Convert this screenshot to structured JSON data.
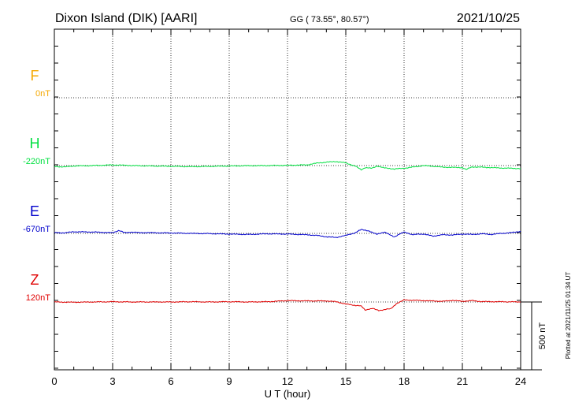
{
  "header": {
    "station": "Dixon Island (DIK)  [AARI]",
    "coords": "GG ( 73.55°,  80.57°)",
    "date": "2021/10/25"
  },
  "footer": {
    "plotted": "Plotted at 2021/11/25 01:34 UT"
  },
  "chart_data": {
    "type": "line",
    "xlabel": "U T (hour)",
    "xlim": [
      0,
      24
    ],
    "xticks": [
      0,
      3,
      6,
      9,
      12,
      15,
      18,
      21,
      24
    ],
    "scale_bar_label": "500 nT",
    "scale_bar_nT": 500,
    "series": [
      {
        "name": "F",
        "baseline_label": "0nT",
        "color": "#f5a800",
        "points": []
      },
      {
        "name": "H",
        "baseline_label": "-220nT",
        "color": "#00e040",
        "points": [
          [
            0,
            -7
          ],
          [
            0.5,
            -10
          ],
          [
            1,
            -3
          ],
          [
            2,
            0
          ],
          [
            3,
            5
          ],
          [
            3.5,
            3
          ],
          [
            4,
            0
          ],
          [
            5,
            -3
          ],
          [
            6,
            -5
          ],
          [
            7,
            -8
          ],
          [
            8,
            -6
          ],
          [
            9,
            -3
          ],
          [
            10,
            -1
          ],
          [
            11,
            0
          ],
          [
            12,
            2
          ],
          [
            13,
            5
          ],
          [
            13.5,
            18
          ],
          [
            14,
            25
          ],
          [
            14.5,
            30
          ],
          [
            15,
            20
          ],
          [
            15.5,
            -5
          ],
          [
            15.8,
            -30
          ],
          [
            16,
            -15
          ],
          [
            16.3,
            -20
          ],
          [
            16.6,
            -5
          ],
          [
            17,
            -18
          ],
          [
            17.5,
            -25
          ],
          [
            18,
            -20
          ],
          [
            19,
            0
          ],
          [
            19.5,
            -5
          ],
          [
            20,
            -12
          ],
          [
            21,
            -15
          ],
          [
            21.2,
            -28
          ],
          [
            21.5,
            -10
          ],
          [
            22,
            -12
          ],
          [
            23,
            -18
          ],
          [
            24,
            -22
          ]
        ]
      },
      {
        "name": "E",
        "baseline_label": "-670nT",
        "color": "#0000cc",
        "points": [
          [
            0,
            5
          ],
          [
            0.5,
            4
          ],
          [
            1,
            12
          ],
          [
            2,
            10
          ],
          [
            3,
            5
          ],
          [
            3.3,
            20
          ],
          [
            3.6,
            8
          ],
          [
            5,
            5
          ],
          [
            6,
            3
          ],
          [
            7,
            0
          ],
          [
            8,
            -2
          ],
          [
            9,
            -5
          ],
          [
            10,
            -8
          ],
          [
            11,
            -3
          ],
          [
            12,
            -5
          ],
          [
            13,
            -10
          ],
          [
            13.5,
            -15
          ],
          [
            14,
            -25
          ],
          [
            14.5,
            -30
          ],
          [
            15,
            -15
          ],
          [
            15.5,
            5
          ],
          [
            15.8,
            30
          ],
          [
            16.2,
            18
          ],
          [
            16.6,
            -5
          ],
          [
            17,
            8
          ],
          [
            17.5,
            -25
          ],
          [
            18,
            10
          ],
          [
            18.4,
            -8
          ],
          [
            19,
            -5
          ],
          [
            19.5,
            -20
          ],
          [
            20,
            -10
          ],
          [
            20.5,
            -12
          ],
          [
            21,
            -5
          ],
          [
            21.5,
            -8
          ],
          [
            22,
            -3
          ],
          [
            22.5,
            -8
          ],
          [
            23,
            0
          ],
          [
            23.5,
            5
          ],
          [
            24,
            15
          ]
        ]
      },
      {
        "name": "Z",
        "baseline_label": "120nT",
        "color": "#e00000",
        "points": [
          [
            0,
            0
          ],
          [
            1,
            -2
          ],
          [
            2,
            0
          ],
          [
            3,
            2
          ],
          [
            4,
            0
          ],
          [
            5,
            0
          ],
          [
            6,
            0
          ],
          [
            7,
            2
          ],
          [
            8,
            0
          ],
          [
            9,
            2
          ],
          [
            10,
            0
          ],
          [
            11,
            2
          ],
          [
            12,
            10
          ],
          [
            13,
            8
          ],
          [
            14,
            8
          ],
          [
            14.5,
            2
          ],
          [
            15,
            -15
          ],
          [
            15.5,
            -25
          ],
          [
            15.8,
            -30
          ],
          [
            16,
            -60
          ],
          [
            16.4,
            -45
          ],
          [
            16.7,
            -65
          ],
          [
            17,
            -55
          ],
          [
            17.3,
            -50
          ],
          [
            17.6,
            -15
          ],
          [
            18,
            15
          ],
          [
            19,
            10
          ],
          [
            20,
            5
          ],
          [
            20.5,
            12
          ],
          [
            21,
            5
          ],
          [
            21.5,
            10
          ],
          [
            22,
            3
          ],
          [
            23,
            2
          ],
          [
            24,
            0
          ]
        ]
      }
    ]
  }
}
